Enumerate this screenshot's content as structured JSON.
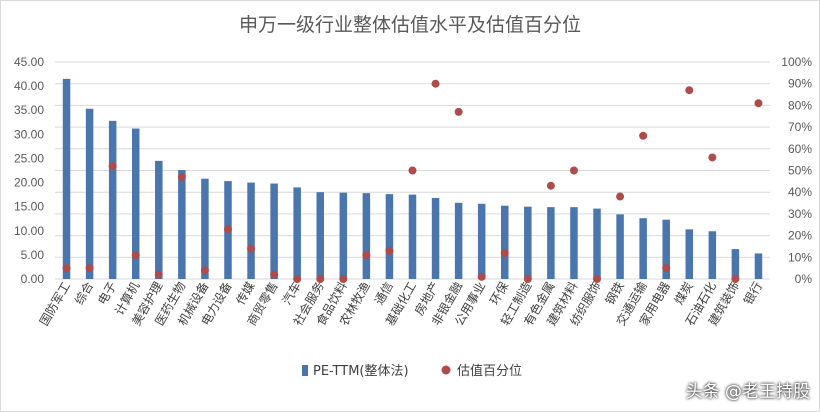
{
  "chart_data": {
    "type": "bar",
    "title": "申万一级行业整体估值水平及估值百分位",
    "categories": [
      "国防军工",
      "综合",
      "电子",
      "计算机",
      "美容护理",
      "医药生物",
      "机械设备",
      "电力设备",
      "传媒",
      "商贸零售",
      "汽车",
      "社会服务",
      "食品饮料",
      "农林牧渔",
      "通信",
      "基础化工",
      "房地产",
      "非银金融",
      "公用事业",
      "环保",
      "轻工制造",
      "有色金属",
      "建筑材料",
      "纺织服饰",
      "钢铁",
      "交通运输",
      "家用电器",
      "煤炭",
      "石油石化",
      "建筑装饰",
      "银行"
    ],
    "series": [
      {
        "name": "PE-TTM(整体法)",
        "type": "bar",
        "axis": "left",
        "values": [
          41.5,
          35.3,
          32.8,
          31.2,
          24.5,
          22.6,
          20.8,
          20.3,
          20.0,
          19.8,
          19.0,
          18.0,
          17.9,
          17.8,
          17.6,
          17.5,
          16.8,
          15.8,
          15.6,
          15.2,
          15.0,
          14.9,
          14.9,
          14.6,
          13.4,
          12.6,
          12.3,
          10.3,
          9.9,
          6.2,
          5.3
        ]
      },
      {
        "name": "估值百分位",
        "type": "scatter",
        "axis": "right",
        "values": [
          5,
          5,
          52,
          11,
          2,
          47,
          4,
          23,
          14,
          2,
          0,
          0,
          0,
          11,
          13,
          50,
          90,
          77,
          1,
          12,
          0,
          43,
          50,
          0,
          38,
          66,
          5,
          87,
          56,
          0,
          81
        ]
      }
    ],
    "ylim_left": [
      0,
      45
    ],
    "yticks_left": [
      "0.00",
      "5.00",
      "10.00",
      "15.00",
      "20.00",
      "25.00",
      "30.00",
      "35.00",
      "40.00",
      "45.00"
    ],
    "ylim_right": [
      0,
      100
    ],
    "yticks_right": [
      "0%",
      "10%",
      "20%",
      "30%",
      "40%",
      "50%",
      "60%",
      "70%",
      "80%",
      "90%",
      "100%"
    ],
    "grid": true,
    "legend_position": "bottom",
    "colors": {
      "bar": "#4a76ad",
      "dot": "#b04b4b",
      "grid": "#d9d9d9",
      "text": "#595959"
    }
  },
  "watermark": "头条 @老王持股"
}
